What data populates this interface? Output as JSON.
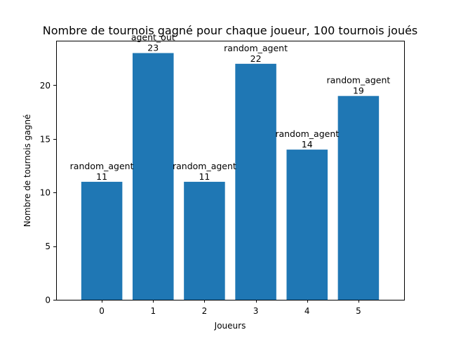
{
  "chart_data": {
    "type": "bar",
    "title": "Nombre de tournois gagné pour chaque joueur, 100 tournois joués",
    "xlabel": "Joueurs",
    "ylabel": "Nombre de tournois gagné",
    "categories": [
      "0",
      "1",
      "2",
      "3",
      "4",
      "5"
    ],
    "values": [
      11,
      23,
      11,
      22,
      14,
      19
    ],
    "bar_names": [
      "random_agent",
      "agent_out",
      "random_agent",
      "random_agent",
      "random_agent",
      "random_agent"
    ],
    "ylim": [
      0,
      24.15
    ],
    "yticks": [
      0,
      5,
      10,
      15,
      20
    ],
    "grid": false,
    "bar_color": "#1f77b4"
  }
}
